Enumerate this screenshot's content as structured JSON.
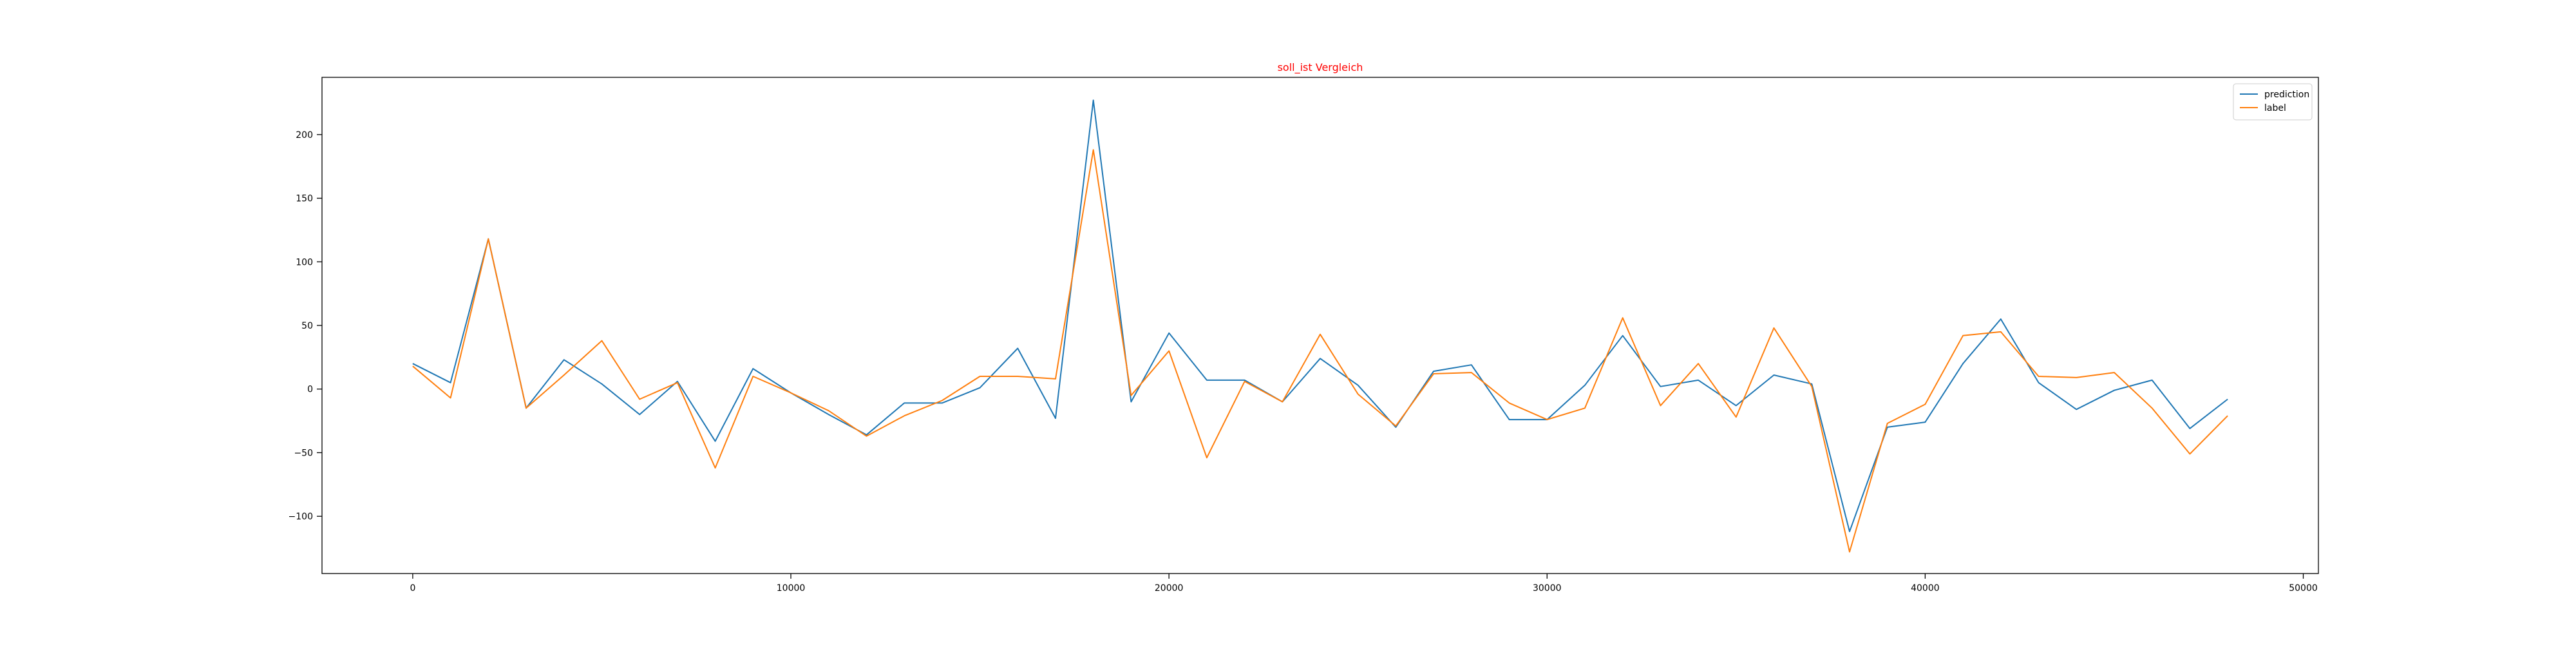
{
  "chart_data": {
    "type": "line",
    "title": "soll_ist Vergleich",
    "title_color": "#ff0000",
    "xlabel": "",
    "ylabel": "",
    "xlim": [
      -2400,
      50400
    ],
    "ylim": [
      -145,
      245
    ],
    "xticks": [
      0,
      10000,
      20000,
      30000,
      40000,
      50000
    ],
    "yticks": [
      -100,
      -50,
      0,
      50,
      100,
      150,
      200
    ],
    "grid": false,
    "legend_position": "top-right",
    "x": [
      0,
      1000,
      2000,
      3000,
      4000,
      5000,
      6000,
      7000,
      8000,
      9000,
      10000,
      11000,
      12000,
      13000,
      14000,
      15000,
      16000,
      17000,
      18000,
      19000,
      20000,
      21000,
      22000,
      23000,
      24000,
      25000,
      26000,
      27000,
      28000,
      29000,
      30000,
      31000,
      32000,
      33000,
      34000,
      35000,
      36000,
      37000,
      38000,
      39000,
      40000,
      41000,
      42000,
      43000,
      44000,
      45000,
      46000,
      47000,
      48000
    ],
    "series": [
      {
        "name": "prediction",
        "color": "#1f77b4",
        "values": [
          20,
          5,
          118,
          -15,
          23,
          4,
          -20,
          6,
          -41,
          16,
          -3,
          -20,
          -36,
          -11,
          -11,
          1,
          32,
          -23,
          227,
          -10,
          44,
          7,
          7,
          -10,
          24,
          3,
          -30,
          14,
          19,
          -24,
          -24,
          3,
          42,
          2,
          7,
          -13,
          11,
          4,
          -112,
          -30,
          -26,
          20,
          55,
          5,
          -16,
          -1,
          7,
          -31,
          -8
        ]
      },
      {
        "name": "label",
        "color": "#ff7f0e",
        "values": [
          18,
          -7,
          118,
          -15,
          11,
          38,
          -8,
          5,
          -62,
          10,
          -3,
          -17,
          -37,
          -21,
          -9,
          10,
          10,
          8,
          188,
          -5,
          30,
          -54,
          6,
          -10,
          43,
          -4,
          -29,
          12,
          13,
          -11,
          -24,
          -15,
          56,
          -13,
          20,
          -22,
          48,
          2,
          -128,
          -27,
          -12,
          42,
          45,
          10,
          9,
          13,
          -15,
          -51,
          -21
        ]
      }
    ]
  }
}
